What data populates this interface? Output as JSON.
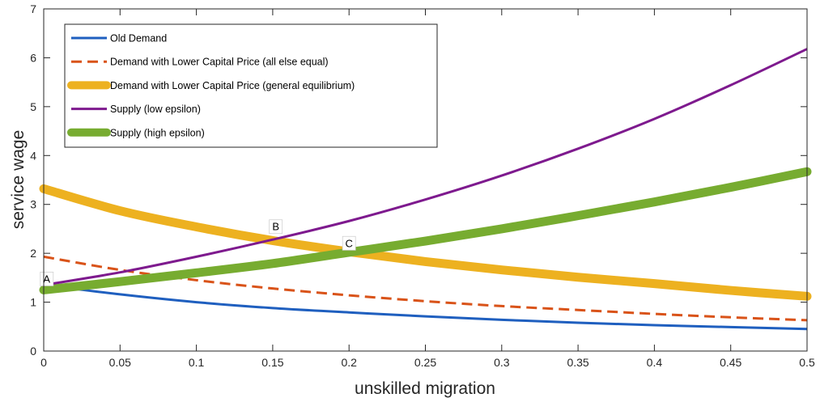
{
  "chart_data": {
    "type": "line",
    "xlabel": "unskilled migration",
    "ylabel": "service wage",
    "xlim": [
      0,
      0.5
    ],
    "ylim": [
      0,
      7
    ],
    "xticks": [
      "0",
      "0.05",
      "0.1",
      "0.15",
      "0.2",
      "0.25",
      "0.3",
      "0.35",
      "0.4",
      "0.45",
      "0.5"
    ],
    "yticks": [
      "0",
      "1",
      "2",
      "3",
      "4",
      "5",
      "6",
      "7"
    ],
    "grid": false,
    "legend_position": "top-left",
    "x": [
      0,
      0.05,
      0.1,
      0.15,
      0.2,
      0.25,
      0.3,
      0.35,
      0.4,
      0.45,
      0.5
    ],
    "series": [
      {
        "name": "Old Demand",
        "color": "#1f5fbf",
        "style": "solid",
        "values": [
          1.35,
          1.16,
          1.0,
          0.88,
          0.79,
          0.71,
          0.64,
          0.58,
          0.53,
          0.49,
          0.45
        ]
      },
      {
        "name": "Demand with Lower Capital Price (all else equal)",
        "color": "#d95319",
        "style": "dashed",
        "values": [
          1.93,
          1.66,
          1.45,
          1.28,
          1.14,
          1.02,
          0.92,
          0.84,
          0.76,
          0.69,
          0.63
        ]
      },
      {
        "name": "Demand with Lower Capital Price (general equilibrium)",
        "color": "#edb120",
        "style": "thick",
        "values": [
          3.32,
          2.87,
          2.54,
          2.26,
          2.03,
          1.83,
          1.66,
          1.51,
          1.38,
          1.24,
          1.12
        ]
      },
      {
        "name": "Supply (low epsilon)",
        "color": "#7e1a8e",
        "style": "solid",
        "values": [
          1.35,
          1.61,
          1.93,
          2.28,
          2.66,
          3.1,
          3.59,
          4.14,
          4.75,
          5.44,
          6.18
        ]
      },
      {
        "name": "Supply (high epsilon)",
        "color": "#77ac30",
        "style": "thick",
        "values": [
          1.25,
          1.42,
          1.6,
          1.79,
          2.02,
          2.25,
          2.5,
          2.77,
          3.05,
          3.35,
          3.67
        ]
      }
    ],
    "annotations": [
      {
        "label": "A",
        "x": 0.002,
        "y": 1.45
      },
      {
        "label": "B",
        "x": 0.152,
        "y": 2.52
      },
      {
        "label": "C",
        "x": 0.2,
        "y": 2.18
      }
    ]
  }
}
